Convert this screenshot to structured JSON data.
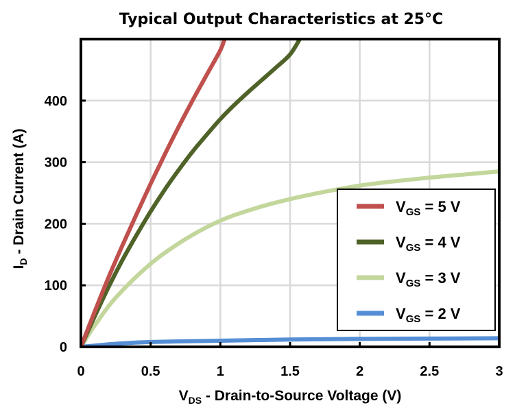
{
  "chart_data": {
    "type": "line",
    "title": "Typical Output Characteristics at 25°C",
    "xlabel": {
      "main": "V",
      "sub": "DS",
      "rest": " - Drain-to-Source Voltage (V)"
    },
    "ylabel": {
      "main": "I",
      "sub": "D",
      "rest": " - Drain Current (A)"
    },
    "xlim": [
      0,
      3
    ],
    "ylim": [
      0,
      500
    ],
    "xticks": [
      "0",
      "0.5",
      "1",
      "1.5",
      "2",
      "2.5",
      "3"
    ],
    "xtick_values": [
      0,
      0.5,
      1,
      1.5,
      2,
      2.5,
      3
    ],
    "yticks": [
      "0",
      "100",
      "200",
      "300",
      "400"
    ],
    "ytick_values": [
      0,
      100,
      200,
      300,
      400
    ],
    "grid": true,
    "legend_position": "right",
    "series": [
      {
        "name": "VGS = 5 V",
        "label_main": "V",
        "label_sub": "GS",
        "label_rest": " = 5 V",
        "color": "#C0504D",
        "x": [
          0,
          0.1,
          0.2,
          0.3,
          0.4,
          0.5,
          0.6,
          0.7,
          0.8,
          0.9,
          1.0,
          1.03
        ],
        "y": [
          0,
          58,
          114,
          166,
          216,
          265,
          312,
          357,
          400,
          441,
          482,
          500
        ]
      },
      {
        "name": "VGS = 4 V",
        "label_main": "V",
        "label_sub": "GS",
        "label_rest": " = 4 V",
        "color": "#4F6228",
        "x": [
          0,
          0.1,
          0.2,
          0.3,
          0.4,
          0.5,
          0.6,
          0.7,
          0.8,
          0.9,
          1.0,
          1.1,
          1.2,
          1.3,
          1.4,
          1.5,
          1.57
        ],
        "y": [
          0,
          50,
          98,
          142,
          182,
          220,
          255,
          287,
          317,
          344,
          370,
          393,
          414,
          434,
          454,
          475,
          500
        ]
      },
      {
        "name": "VGS = 3 V",
        "label_main": "V",
        "label_sub": "GS",
        "label_rest": " = 3 V",
        "color": "#C3D69B",
        "x": [
          0,
          0.1,
          0.25,
          0.5,
          0.75,
          1.0,
          1.25,
          1.5,
          1.75,
          2.0,
          2.25,
          2.5,
          2.75,
          3.0
        ],
        "y": [
          0,
          35,
          80,
          135,
          175,
          205,
          225,
          240,
          252,
          262,
          269,
          275,
          280,
          285
        ]
      },
      {
        "name": "VGS = 2 V",
        "label_main": "V",
        "label_sub": "GS",
        "label_rest": " = 2 V",
        "color": "#558ED5",
        "x": [
          0,
          0.25,
          0.5,
          1.0,
          1.5,
          2.0,
          2.5,
          3.0
        ],
        "y": [
          0,
          5,
          8,
          10,
          12,
          13,
          13.5,
          14
        ]
      }
    ]
  }
}
